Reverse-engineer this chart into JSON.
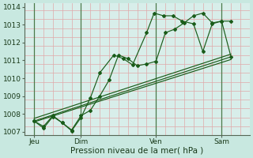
{
  "xlabel": "Pression niveau de la mer( hPa )",
  "ylim": [
    1006.8,
    1014.2
  ],
  "xlim": [
    0,
    12
  ],
  "background_color": "#c8e8e0",
  "plot_bg": "#d8eeea",
  "grid_color_h": "#e0a8a8",
  "grid_color_v": "#4a7a4a",
  "line_color": "#1a5c1a",
  "days": [
    "Jeu",
    "Dim",
    "Ven",
    "Sam"
  ],
  "day_positions": [
    0.5,
    3.0,
    7.0,
    10.5
  ],
  "vline_positions": [
    0.5,
    3.0,
    7.0,
    10.5
  ],
  "series_jagged1_x": [
    0.5,
    1.0,
    1.5,
    2.0,
    2.5,
    3.0,
    3.5,
    4.0,
    4.5,
    5.0,
    5.5,
    6.0,
    6.5,
    7.0,
    7.5,
    8.0,
    8.5,
    9.0,
    9.5,
    10.0,
    10.5,
    11.0
  ],
  "series_jagged1_y": [
    1007.6,
    1007.3,
    1007.9,
    1007.5,
    1007.1,
    1007.9,
    1008.2,
    1009.0,
    1009.9,
    1011.3,
    1011.1,
    1010.7,
    1010.8,
    1010.95,
    1012.55,
    1012.75,
    1013.1,
    1013.5,
    1013.65,
    1013.1,
    1013.2,
    1013.2
  ],
  "series_jagged2_x": [
    0.5,
    1.0,
    1.5,
    2.0,
    2.5,
    3.0,
    3.5,
    4.0,
    4.75,
    5.25,
    5.75,
    6.5,
    6.9,
    7.4,
    7.9,
    8.4,
    9.0,
    9.5,
    10.0,
    10.5,
    11.0
  ],
  "series_jagged2_y": [
    1007.6,
    1007.2,
    1007.85,
    1007.5,
    1007.05,
    1007.8,
    1008.9,
    1010.3,
    1011.3,
    1011.1,
    1010.75,
    1012.55,
    1013.65,
    1013.5,
    1013.5,
    1013.2,
    1013.05,
    1011.5,
    1013.05,
    1013.2,
    1011.2
  ],
  "series_trend1_x": [
    0.5,
    11.0
  ],
  "series_trend1_y": [
    1007.6,
    1011.2
  ],
  "series_trend2_x": [
    0.5,
    11.0
  ],
  "series_trend2_y": [
    1007.75,
    1011.35
  ],
  "series_trend3_x": [
    0.5,
    11.0
  ],
  "series_trend3_y": [
    1007.55,
    1011.05
  ],
  "yticks": [
    1007,
    1008,
    1009,
    1010,
    1011,
    1012,
    1013,
    1014
  ],
  "label_fontsize": 7.5,
  "tick_fontsize": 6.5
}
